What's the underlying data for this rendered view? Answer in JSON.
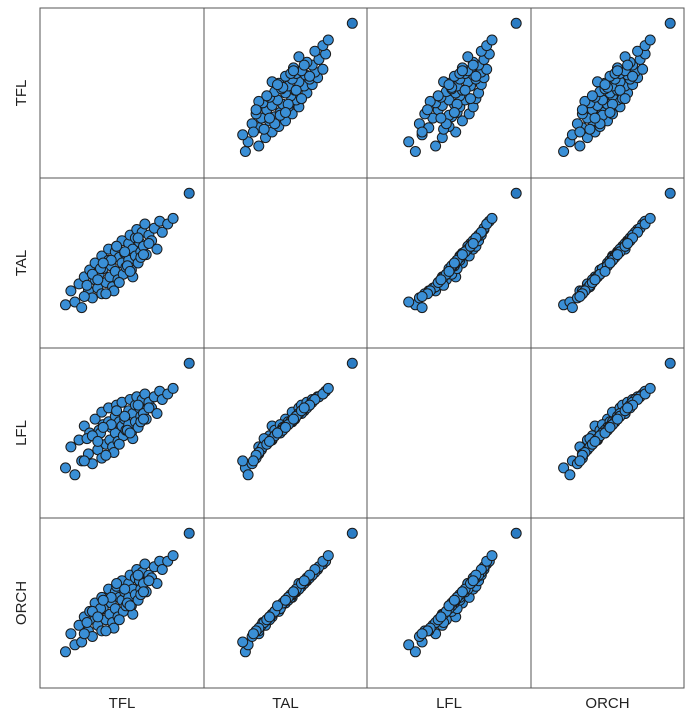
{
  "chart_data": {
    "type": "scatter",
    "subtype": "scatterplot-matrix",
    "variables": [
      "TFL",
      "TAL",
      "LFL",
      "ORCH"
    ],
    "diagonal": "empty",
    "grid": false,
    "point_color": "#3a8fd6",
    "point_edge_color": "#1a1a1a",
    "outlier_color": "#2a7cc4",
    "data": {
      "TFL": [
        0.08,
        0.12,
        0.15,
        0.18,
        0.2,
        0.22,
        0.25,
        0.26,
        0.28,
        0.3,
        0.3,
        0.32,
        0.33,
        0.35,
        0.35,
        0.36,
        0.38,
        0.4,
        0.4,
        0.41,
        0.42,
        0.43,
        0.45,
        0.45,
        0.46,
        0.47,
        0.48,
        0.5,
        0.5,
        0.51,
        0.52,
        0.53,
        0.55,
        0.55,
        0.56,
        0.57,
        0.58,
        0.6,
        0.6,
        0.61,
        0.62,
        0.63,
        0.64,
        0.65,
        0.66,
        0.67,
        0.68,
        0.7,
        0.72,
        0.74,
        0.76,
        0.78,
        0.8,
        0.84,
        0.88,
        0.24,
        0.34,
        0.44,
        0.54,
        0.64,
        0.58,
        0.48,
        0.38,
        0.28,
        0.52,
        0.62,
        0.42,
        0.32,
        0.46,
        0.56,
        0.66,
        0.36,
        0.7,
        0.22,
        1.0
      ],
      "TAL": [
        0.2,
        0.3,
        0.22,
        0.35,
        0.18,
        0.4,
        0.3,
        0.45,
        0.25,
        0.38,
        0.5,
        0.32,
        0.42,
        0.55,
        0.28,
        0.46,
        0.36,
        0.52,
        0.6,
        0.4,
        0.48,
        0.33,
        0.58,
        0.44,
        0.62,
        0.38,
        0.54,
        0.5,
        0.66,
        0.42,
        0.57,
        0.47,
        0.64,
        0.52,
        0.7,
        0.45,
        0.6,
        0.68,
        0.55,
        0.74,
        0.5,
        0.65,
        0.58,
        0.72,
        0.62,
        0.78,
        0.56,
        0.7,
        0.66,
        0.75,
        0.6,
        0.8,
        0.72,
        0.78,
        0.82,
        0.34,
        0.46,
        0.3,
        0.48,
        0.54,
        0.4,
        0.36,
        0.28,
        0.42,
        0.58,
        0.68,
        0.52,
        0.38,
        0.62,
        0.44,
        0.56,
        0.5,
        0.64,
        0.26,
        1.0
      ],
      "LFL": [
        0.25,
        0.4,
        0.2,
        0.45,
        0.3,
        0.55,
        0.35,
        0.5,
        0.28,
        0.48,
        0.6,
        0.38,
        0.52,
        0.65,
        0.32,
        0.56,
        0.42,
        0.58,
        0.68,
        0.45,
        0.54,
        0.4,
        0.62,
        0.5,
        0.7,
        0.44,
        0.58,
        0.55,
        0.72,
        0.48,
        0.6,
        0.52,
        0.66,
        0.56,
        0.74,
        0.5,
        0.64,
        0.7,
        0.58,
        0.76,
        0.54,
        0.68,
        0.62,
        0.74,
        0.64,
        0.78,
        0.6,
        0.72,
        0.68,
        0.76,
        0.64,
        0.8,
        0.74,
        0.78,
        0.82,
        0.46,
        0.5,
        0.36,
        0.52,
        0.58,
        0.46,
        0.42,
        0.34,
        0.48,
        0.62,
        0.7,
        0.56,
        0.44,
        0.66,
        0.5,
        0.6,
        0.54,
        0.68,
        0.3,
        1.0
      ],
      "ORCH": [
        0.15,
        0.28,
        0.2,
        0.34,
        0.22,
        0.4,
        0.3,
        0.44,
        0.26,
        0.38,
        0.5,
        0.34,
        0.44,
        0.54,
        0.3,
        0.46,
        0.38,
        0.52,
        0.6,
        0.42,
        0.5,
        0.36,
        0.58,
        0.46,
        0.62,
        0.4,
        0.54,
        0.52,
        0.66,
        0.44,
        0.58,
        0.48,
        0.64,
        0.54,
        0.7,
        0.48,
        0.6,
        0.68,
        0.56,
        0.74,
        0.52,
        0.66,
        0.6,
        0.72,
        0.64,
        0.78,
        0.58,
        0.7,
        0.68,
        0.76,
        0.64,
        0.8,
        0.74,
        0.8,
        0.84,
        0.36,
        0.46,
        0.32,
        0.5,
        0.56,
        0.42,
        0.38,
        0.3,
        0.44,
        0.6,
        0.7,
        0.54,
        0.4,
        0.64,
        0.48,
        0.58,
        0.52,
        0.66,
        0.28,
        1.0
      ]
    }
  }
}
